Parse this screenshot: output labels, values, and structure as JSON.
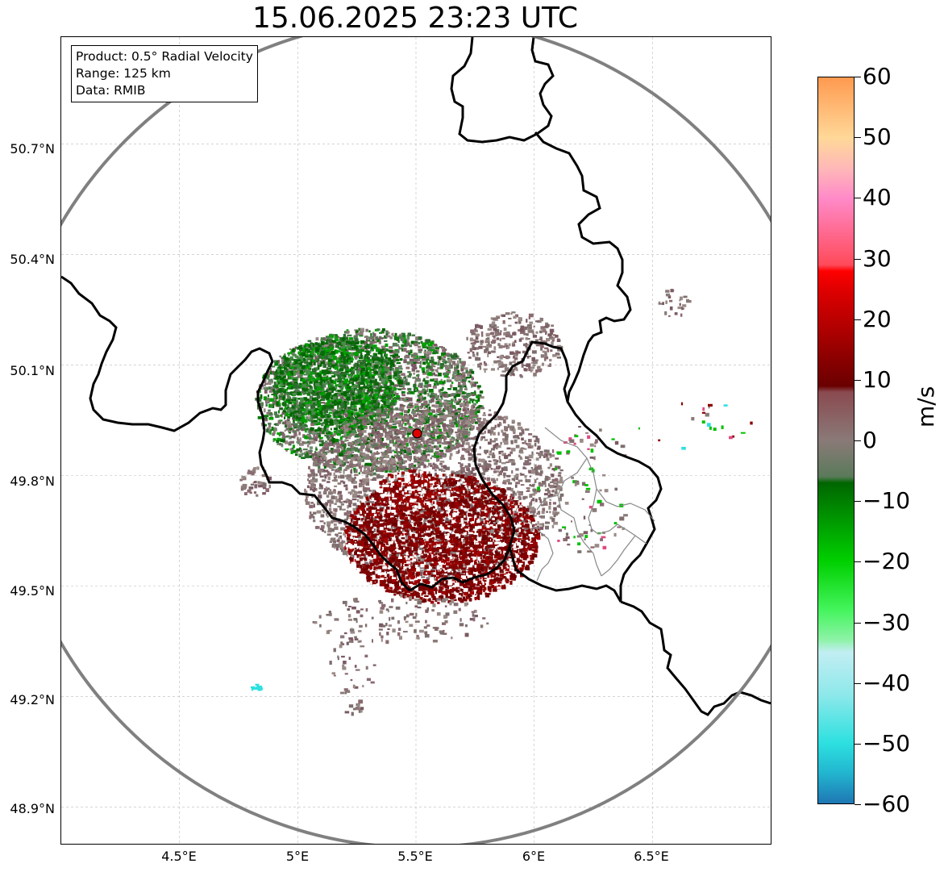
{
  "title": "15.06.2025 23:23 UTC",
  "info": {
    "product": "Product: 0.5° Radial Velocity",
    "range": "Range: 125 km",
    "data": "Data: RMIB"
  },
  "map": {
    "lon_range": [
      4.0,
      7.0
    ],
    "lat_range": [
      48.8,
      50.99
    ],
    "radar_site": {
      "lon": 5.505,
      "lat": 49.914
    },
    "range_km": 125,
    "lat_ticks": [
      "50.7°N",
      "50.4°N",
      "50.1°N",
      "49.8°N",
      "49.5°N",
      "49.2°N",
      "48.9°N"
    ],
    "lat_values": [
      50.7,
      50.4,
      50.1,
      49.8,
      49.5,
      49.2,
      48.9
    ],
    "lon_ticks": [
      "4.5°E",
      "5°E",
      "5.5°E",
      "6°E",
      "6.5°E"
    ],
    "lon_values": [
      4.5,
      5.0,
      5.5,
      6.0,
      6.5
    ]
  },
  "colorbar": {
    "label": "m/s",
    "min": -60,
    "max": 60,
    "ticks": [
      "60",
      "50",
      "40",
      "30",
      "20",
      "10",
      "0",
      "−10",
      "−20",
      "−30",
      "−40",
      "−50",
      "−60"
    ],
    "tick_values": [
      60,
      50,
      40,
      30,
      20,
      10,
      0,
      -10,
      -20,
      -30,
      -40,
      -50,
      -60
    ],
    "stops": [
      {
        "v": -60,
        "c": "#1f77b4"
      },
      {
        "v": -55,
        "c": "#22b5cf"
      },
      {
        "v": -50,
        "c": "#2de0e0"
      },
      {
        "v": -42,
        "c": "#8ee8ea"
      },
      {
        "v": -35,
        "c": "#c2eef3"
      },
      {
        "v": -33,
        "c": "#8ef3a8"
      },
      {
        "v": -28,
        "c": "#44f45c"
      },
      {
        "v": -20,
        "c": "#00d000"
      },
      {
        "v": -7,
        "c": "#006600"
      },
      {
        "v": -6,
        "c": "#5a7a5a"
      },
      {
        "v": 0,
        "c": "#8a7a78"
      },
      {
        "v": 8,
        "c": "#8a4a50"
      },
      {
        "v": 9,
        "c": "#6a0000"
      },
      {
        "v": 25,
        "c": "#e00000"
      },
      {
        "v": 28,
        "c": "#ff0000"
      },
      {
        "v": 29,
        "c": "#ff4a5a"
      },
      {
        "v": 40,
        "c": "#ff8ac8"
      },
      {
        "v": 45,
        "c": "#ffb8b8"
      },
      {
        "v": 50,
        "c": "#ffd898"
      },
      {
        "v": 60,
        "c": "#ff9a50"
      }
    ]
  },
  "colors": {
    "border": "#000000",
    "province": "#888888",
    "range_ring": "#808080",
    "site": "#e00000"
  }
}
